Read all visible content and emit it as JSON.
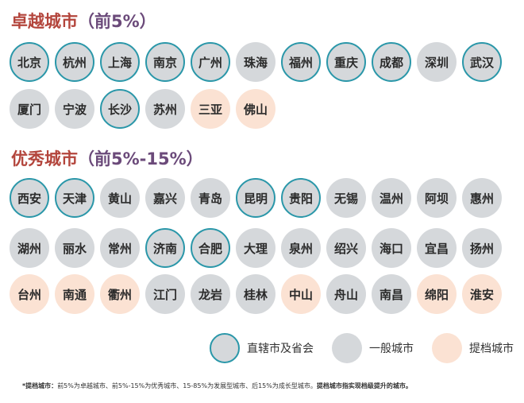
{
  "sections": [
    {
      "title": "卓越城市",
      "subtitle": "（前5%）",
      "rows": [
        [
          {
            "name": "北京",
            "type": "ring"
          },
          {
            "name": "杭州",
            "type": "ring"
          },
          {
            "name": "上海",
            "type": "ring"
          },
          {
            "name": "南京",
            "type": "ring"
          },
          {
            "name": "广州",
            "type": "ring"
          },
          {
            "name": "珠海",
            "type": "gray"
          },
          {
            "name": "福州",
            "type": "ring"
          },
          {
            "name": "重庆",
            "type": "ring"
          },
          {
            "name": "成都",
            "type": "ring"
          },
          {
            "name": "深圳",
            "type": "gray"
          },
          {
            "name": "武汉",
            "type": "ring"
          }
        ],
        [
          {
            "name": "厦门",
            "type": "gray"
          },
          {
            "name": "宁波",
            "type": "gray"
          },
          {
            "name": "长沙",
            "type": "ring"
          },
          {
            "name": "苏州",
            "type": "gray"
          },
          {
            "name": "三亚",
            "type": "peach"
          },
          {
            "name": "佛山",
            "type": "peach"
          }
        ]
      ]
    },
    {
      "title": "优秀城市",
      "subtitle": "（前5%-15%）",
      "rows": [
        [
          {
            "name": "西安",
            "type": "ring"
          },
          {
            "name": "天津",
            "type": "ring"
          },
          {
            "name": "黄山",
            "type": "gray"
          },
          {
            "name": "嘉兴",
            "type": "gray"
          },
          {
            "name": "青岛",
            "type": "gray"
          },
          {
            "name": "昆明",
            "type": "ring"
          },
          {
            "name": "贵阳",
            "type": "ring"
          },
          {
            "name": "无锡",
            "type": "gray"
          },
          {
            "name": "温州",
            "type": "gray"
          },
          {
            "name": "阿坝",
            "type": "gray"
          },
          {
            "name": "惠州",
            "type": "gray"
          }
        ],
        [
          {
            "name": "湖州",
            "type": "gray"
          },
          {
            "name": "丽水",
            "type": "gray"
          },
          {
            "name": "常州",
            "type": "gray"
          },
          {
            "name": "济南",
            "type": "ring"
          },
          {
            "name": "合肥",
            "type": "ring"
          },
          {
            "name": "大理",
            "type": "gray"
          },
          {
            "name": "泉州",
            "type": "gray"
          },
          {
            "name": "绍兴",
            "type": "gray"
          },
          {
            "name": "海口",
            "type": "gray"
          },
          {
            "name": "宜昌",
            "type": "gray"
          },
          {
            "name": "扬州",
            "type": "gray"
          }
        ],
        [
          {
            "name": "台州",
            "type": "peach"
          },
          {
            "name": "南通",
            "type": "peach"
          },
          {
            "name": "衢州",
            "type": "peach"
          },
          {
            "name": "江门",
            "type": "gray"
          },
          {
            "name": "龙岩",
            "type": "gray"
          },
          {
            "name": "桂林",
            "type": "gray"
          },
          {
            "name": "中山",
            "type": "peach"
          },
          {
            "name": "舟山",
            "type": "gray"
          },
          {
            "name": "南昌",
            "type": "gray"
          },
          {
            "name": "绵阳",
            "type": "peach"
          },
          {
            "name": "淮安",
            "type": "peach"
          }
        ]
      ]
    }
  ],
  "legend": [
    {
      "label": "直辖市及省会",
      "type": "ring"
    },
    {
      "label": "一般城市",
      "type": "gray"
    },
    {
      "label": "提档城市",
      "type": "peach"
    }
  ],
  "footnote": {
    "lead": "*提档城市：",
    "body": "前5%为卓越城市、前5%-15%为优秀城市、15-85%为发展型城市、后15%为成长型城市。",
    "tail": "提档城市指实现档级提升的城市。"
  },
  "colors": {
    "ring_border": "#2a97a9",
    "gray_fill": "#d5d8db",
    "peach_fill": "#fbe2d3",
    "title_red": "#b3453c",
    "title_purple": "#6b4a7a"
  }
}
